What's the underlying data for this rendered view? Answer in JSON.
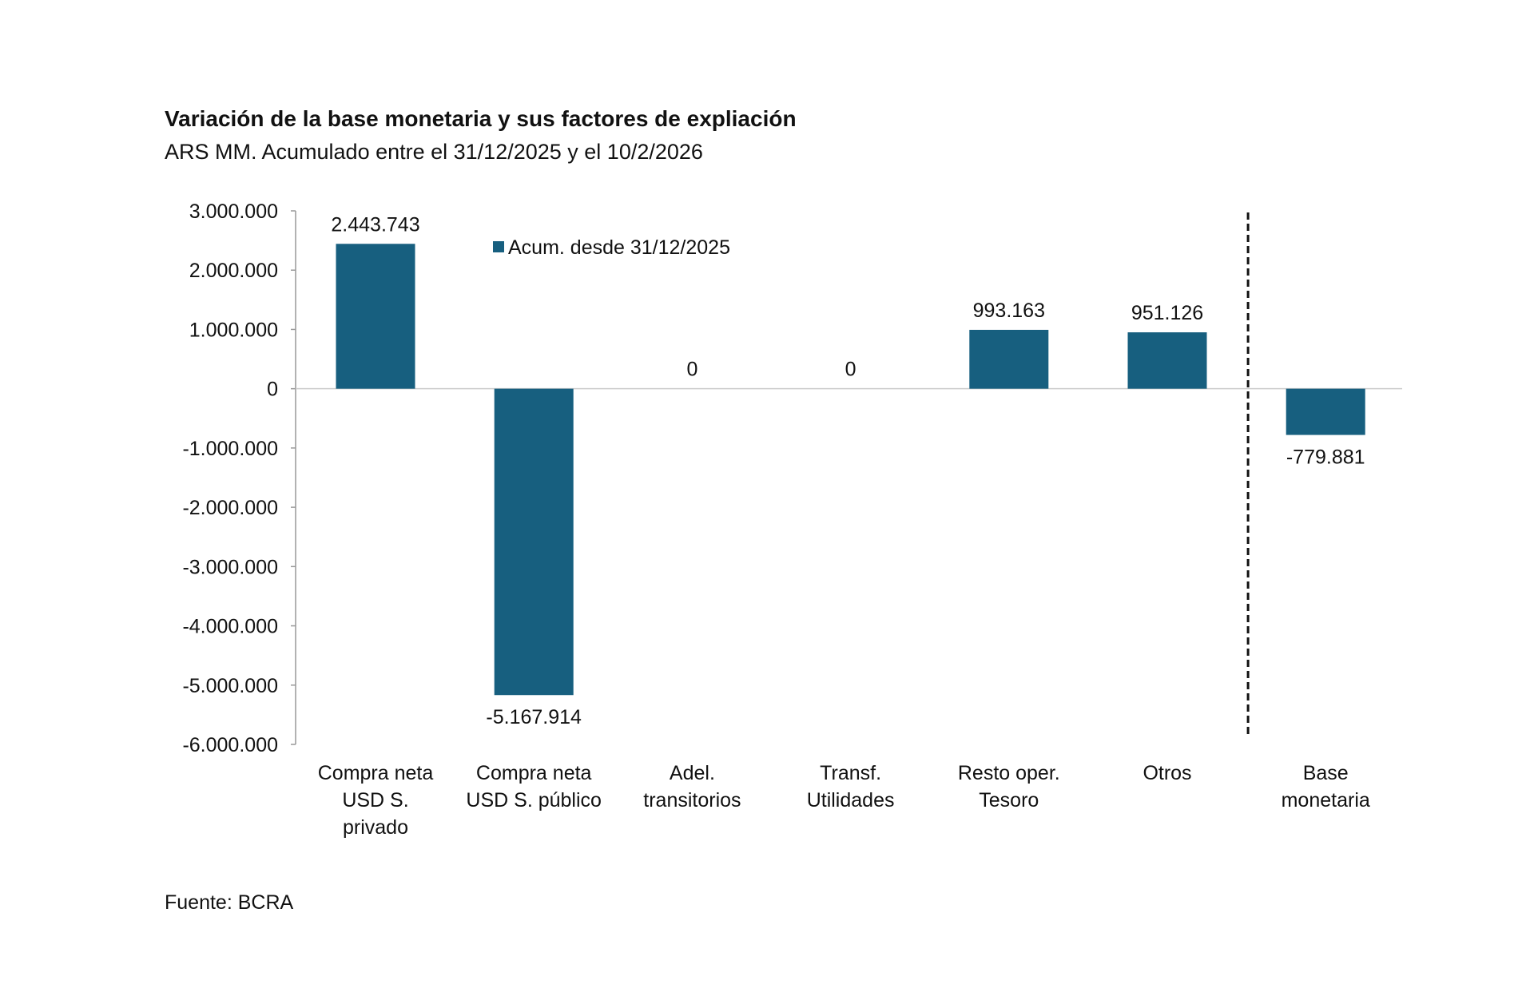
{
  "chart_data": {
    "type": "bar",
    "title": "Variación de la base monetaria y sus factores de expliación",
    "subtitle": "ARS MM. Acumulado entre el 31/12/2025 y el 10/2/2026",
    "categories": [
      [
        "Compra neta",
        "USD S.",
        "privado"
      ],
      [
        "Compra neta",
        "USD S. público"
      ],
      [
        "Adel.",
        "transitorios"
      ],
      [
        "Transf.",
        "Utilidades"
      ],
      [
        "Resto oper.",
        "Tesoro"
      ],
      [
        "Otros"
      ],
      [
        "Base",
        "monetaria"
      ]
    ],
    "series": [
      {
        "name": "Acum. desde 31/12/2025",
        "values": [
          2443743,
          -5167914,
          0,
          0,
          993163,
          951126,
          -779881
        ],
        "labels": [
          "2.443.743",
          "-5.167.914",
          "0",
          "0",
          "993.163",
          "951.126",
          "-779.881"
        ],
        "color": "#175F7F"
      }
    ],
    "ylim": [
      -6000000,
      3000000
    ],
    "yticks": [
      3000000,
      2000000,
      1000000,
      0,
      -1000000,
      -2000000,
      -3000000,
      -4000000,
      -5000000,
      -6000000
    ],
    "ytick_labels": [
      "3.000.000",
      "2.000.000",
      "1.000.000",
      "0",
      "-1.000.000",
      "-2.000.000",
      "-3.000.000",
      "-4.000.000",
      "-5.000.000",
      "-6.000.000"
    ],
    "xlabel": "",
    "ylabel": "",
    "grid": false,
    "legend": "top-center",
    "separator": "dashed vertical line before last category",
    "source": "Fuente: BCRA"
  }
}
